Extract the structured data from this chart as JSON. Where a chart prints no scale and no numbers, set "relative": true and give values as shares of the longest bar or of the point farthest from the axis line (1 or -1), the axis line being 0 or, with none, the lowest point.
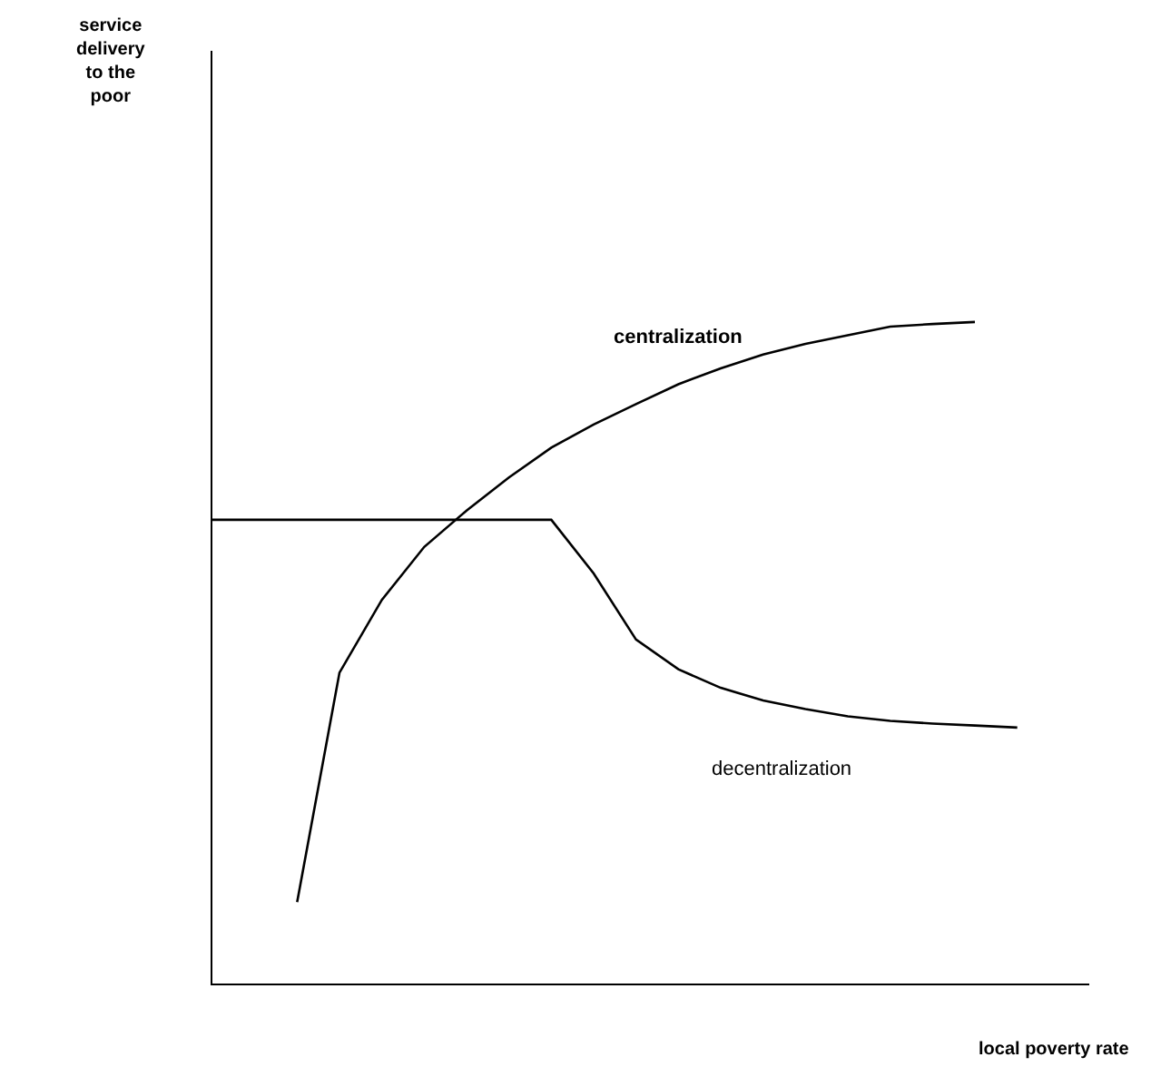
{
  "chart_data": {
    "type": "line",
    "relative": true,
    "xlabel": "local poverty rate",
    "annotations": [
      "service delivery to the poor"
    ],
    "grid": false,
    "legend": false,
    "marker": "none",
    "line_style": "solid",
    "categories": [
      null,
      null,
      null,
      null,
      null,
      null,
      null,
      null,
      null,
      null,
      null,
      null,
      null,
      null,
      null,
      null,
      null,
      null,
      null,
      null,
      null
    ],
    "series": [
      {
        "name": "centralization",
        "color": "#000000",
        "values": [
          null,
          null,
          0.123,
          0.47,
          0.58,
          0.66,
          0.715,
          0.765,
          0.81,
          0.845,
          0.876,
          0.906,
          0.93,
          0.951,
          0.967,
          0.98,
          0.993,
          0.997,
          1,
          null,
          null
        ]
      },
      {
        "name": "decentralization",
        "color": "#000000",
        "values": [
          0.701,
          0.701,
          0.701,
          0.701,
          0.701,
          0.701,
          0.701,
          0.701,
          0.701,
          0.62,
          0.52,
          0.475,
          0.447,
          0.428,
          0.415,
          0.404,
          0.397,
          0.393,
          0.39,
          0.387,
          null
        ]
      }
    ]
  }
}
